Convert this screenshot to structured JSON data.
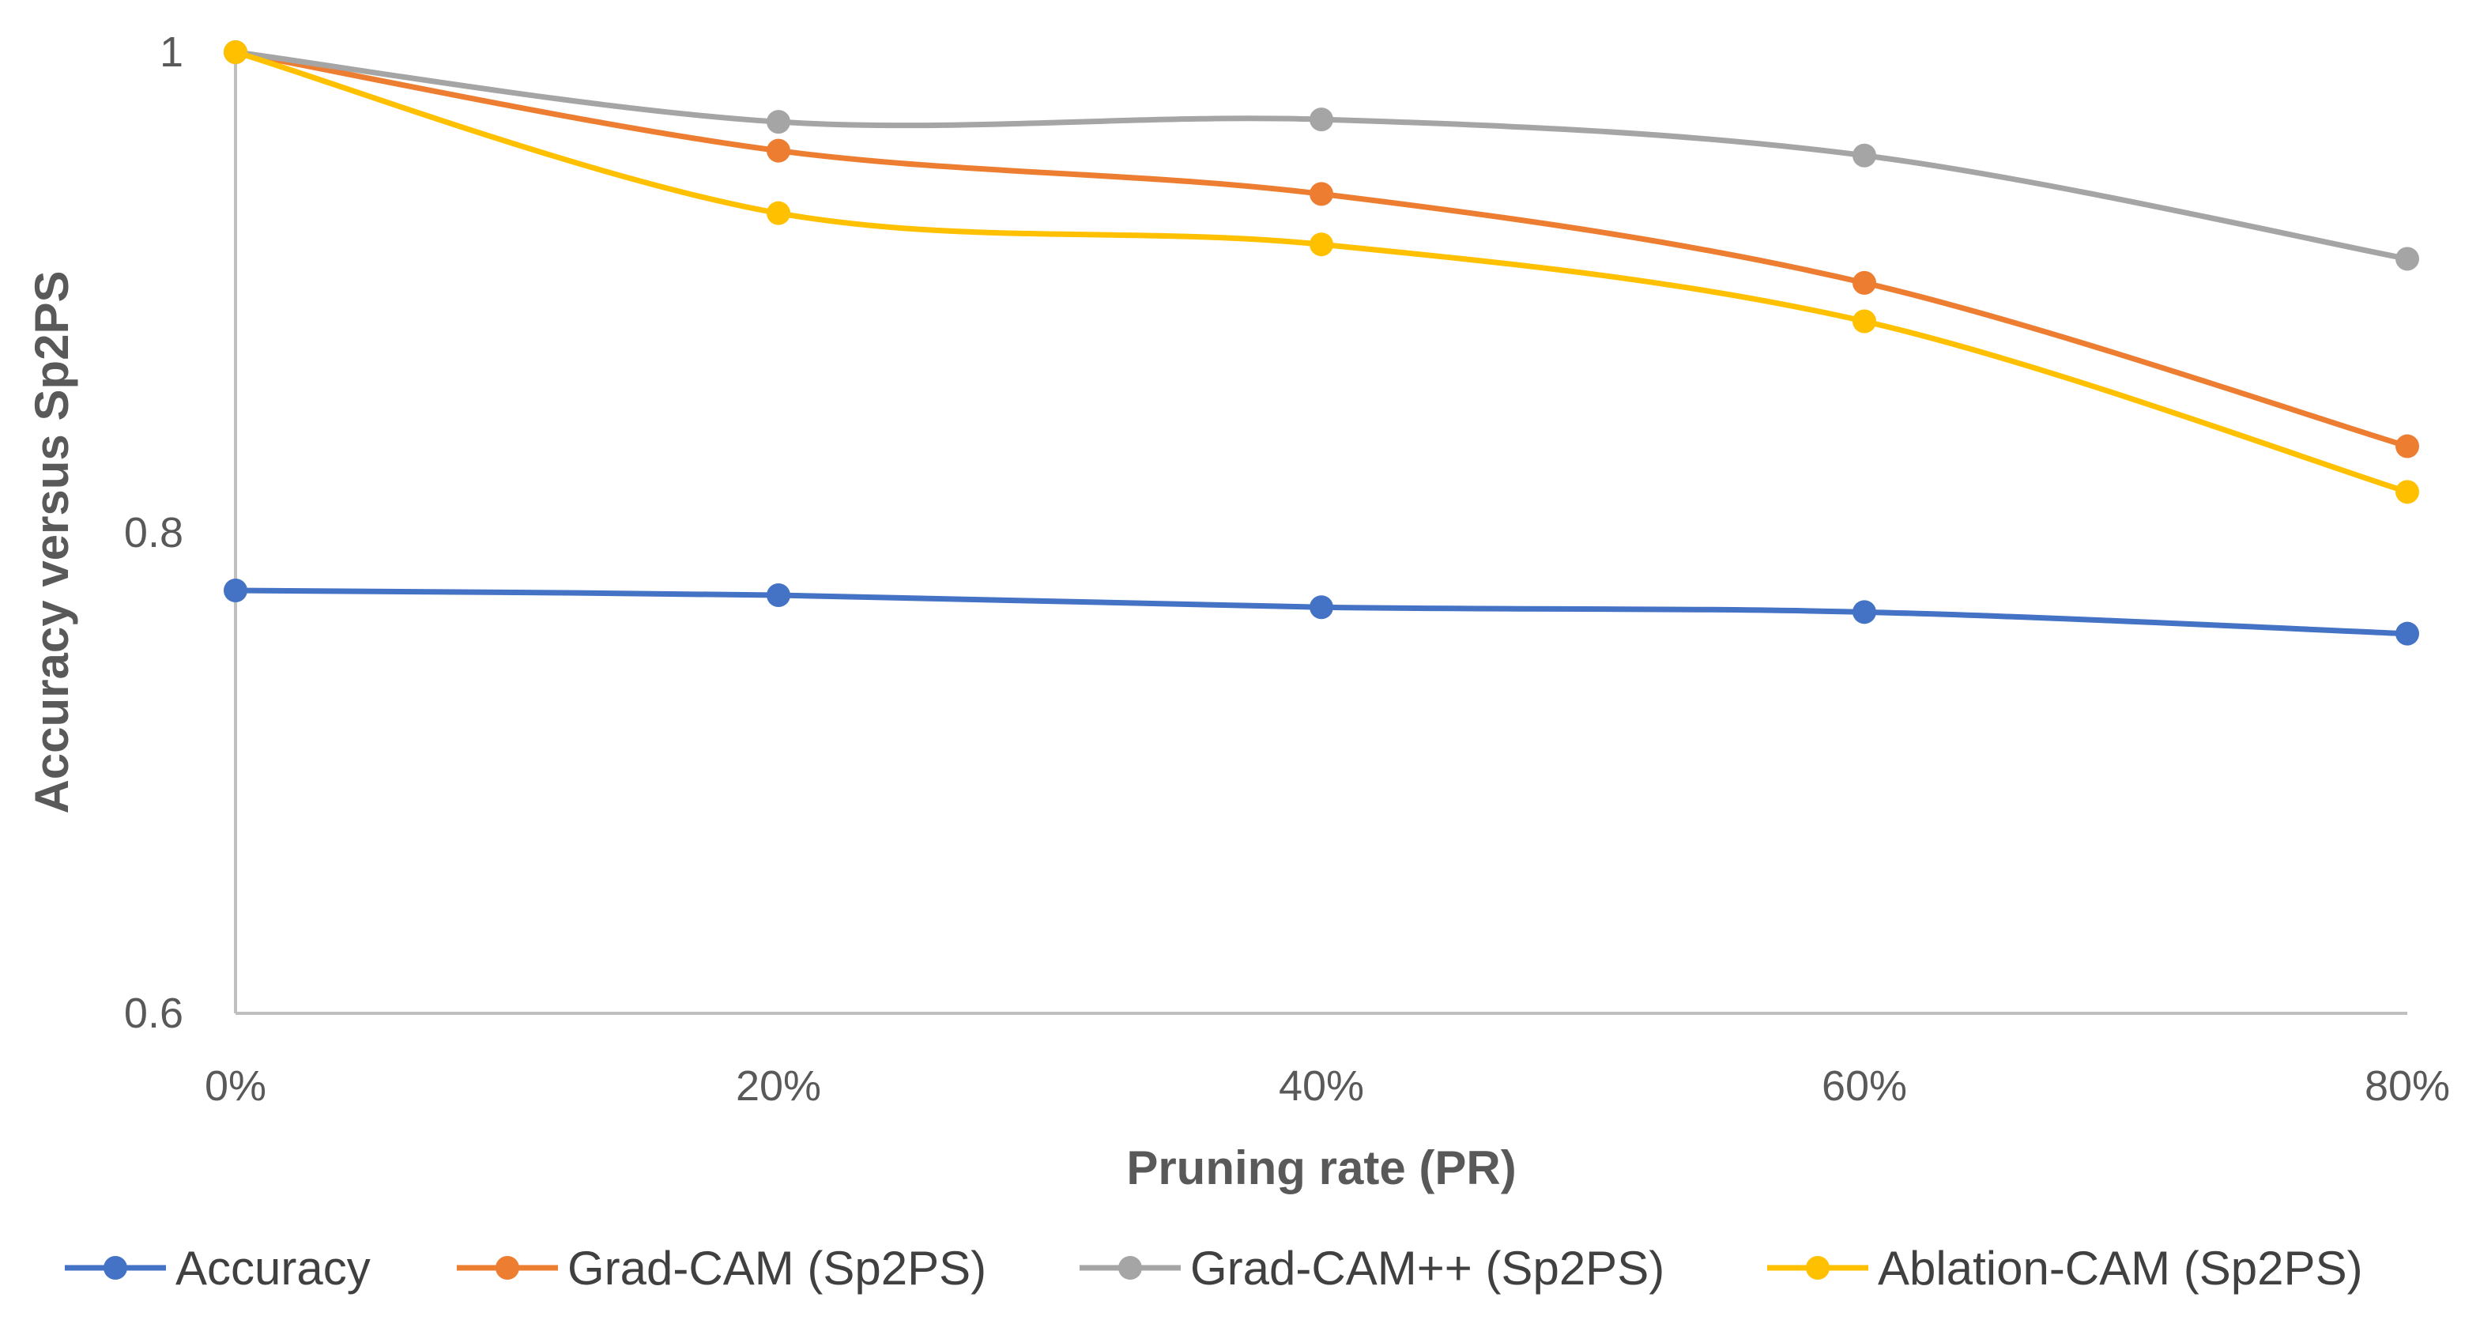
{
  "chart_data": {
    "type": "line",
    "smooth": true,
    "title": "",
    "xlabel": "Pruning rate (PR)",
    "ylabel": "Accuracy versus  Sp2PS",
    "categories": [
      "0%",
      "20%",
      "40%",
      "60%",
      "80%"
    ],
    "ylim": [
      0.6,
      1.0
    ],
    "yticks": [
      0.6,
      0.8,
      1.0
    ],
    "ytick_labels": [
      "0.6",
      "0.8",
      "1"
    ],
    "grid": false,
    "legend_position": "bottom",
    "series": [
      {
        "name": "Accuracy",
        "color": "#4472C4",
        "values": [
          0.776,
          0.774,
          0.769,
          0.767,
          0.758
        ]
      },
      {
        "name": "Grad-CAM (Sp2PS)",
        "color": "#ED7D31",
        "values": [
          1.0,
          0.959,
          0.941,
          0.904,
          0.836
        ]
      },
      {
        "name": "Grad-CAM++  (Sp2PS)",
        "color": "#A5A5A5",
        "values": [
          1.0,
          0.971,
          0.972,
          0.957,
          0.914
        ]
      },
      {
        "name": "Ablation-CAM  (Sp2PS)",
        "color": "#FFC000",
        "values": [
          1.0,
          0.933,
          0.92,
          0.888,
          0.817
        ]
      }
    ]
  }
}
